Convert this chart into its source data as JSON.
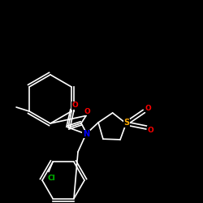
{
  "background_color": "#000000",
  "bond_color": "#ffffff",
  "atom_colors": {
    "O": "#ff0000",
    "N": "#0000ff",
    "S": "#ffaa00",
    "Cl": "#00bb00",
    "C": "#ffffff"
  },
  "figsize": [
    2.5,
    2.5
  ],
  "dpi": 100
}
